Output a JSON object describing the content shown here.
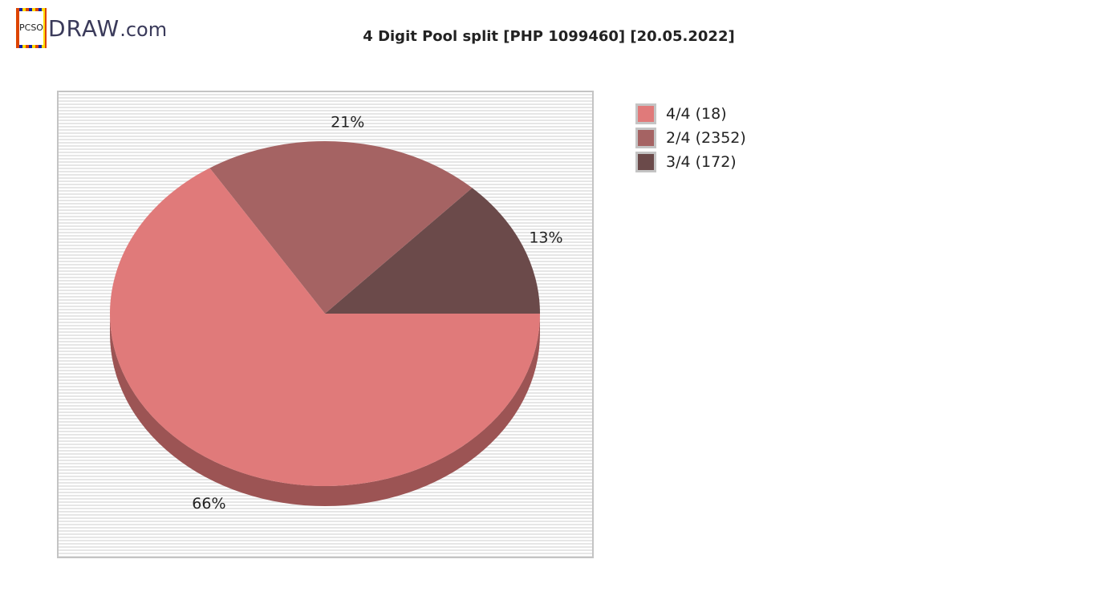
{
  "logo": {
    "badge": "PCSO",
    "text": "DRAW",
    "suffix": ".com"
  },
  "chart_data": {
    "type": "pie",
    "title": "4 Digit Pool split [PHP 1099460] [20.05.2022]",
    "slices": [
      {
        "name": "4/4 (18)",
        "value": 66,
        "label": "66%",
        "color": "#e07a7a"
      },
      {
        "name": "2/4 (2352)",
        "value": 21,
        "label": "21%",
        "color": "#a56363"
      },
      {
        "name": "3/4 (172)",
        "value": 13,
        "label": "13%",
        "color": "#6b4a4a"
      }
    ],
    "legend_position": "right",
    "style": "3d"
  }
}
